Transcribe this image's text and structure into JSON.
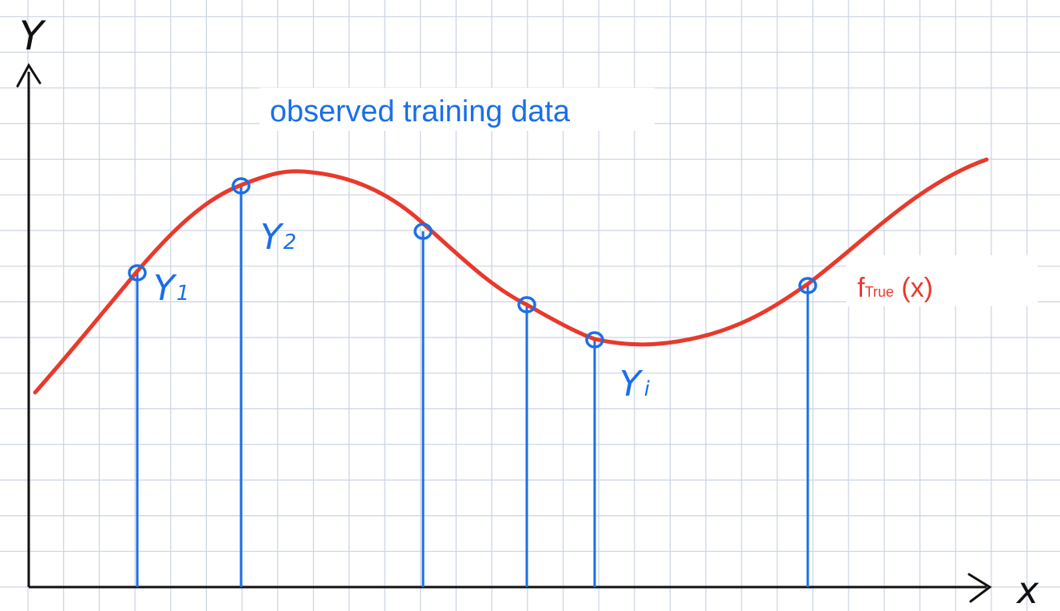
{
  "title": "observed training data",
  "axes": {
    "y_label": "Y",
    "x_label": "x"
  },
  "curve": {
    "name_main": "f",
    "name_sub": "True",
    "name_arg": " (x)",
    "color": "#e8392c"
  },
  "points": {
    "color": "#1a6fe8",
    "labels": [
      {
        "base": "Y",
        "sub": "1"
      },
      {
        "base": "Y",
        "sub": "2"
      },
      {
        "base": "Y",
        "sub": "i"
      }
    ]
  },
  "grid": {
    "visible": true,
    "color": "#c9d3e3"
  }
}
